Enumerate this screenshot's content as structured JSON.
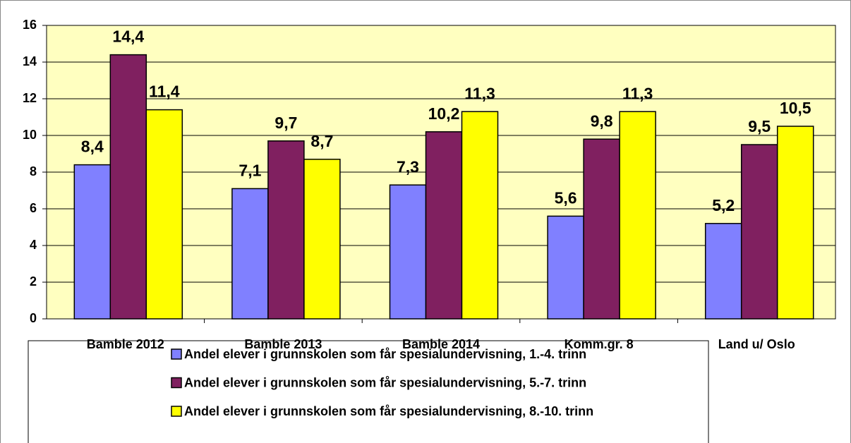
{
  "chart_data": {
    "type": "bar",
    "categories": [
      "Bamble 2012",
      "Bamble 2013",
      "Bamble 2014",
      "Komm.gr. 8",
      "Land u/ Oslo"
    ],
    "series": [
      {
        "name": "Andel elever i grunnskolen som får spesialundervisning, 1.-4. trinn",
        "color": "#8080ff",
        "values": [
          8.4,
          7.1,
          7.3,
          5.6,
          5.2
        ],
        "value_labels": [
          "8,4",
          "7,1",
          "7,3",
          "5,6",
          "5,2"
        ]
      },
      {
        "name": "Andel elever i grunnskolen som får spesialundervisning, 5.-7. trinn",
        "color": "#802060",
        "values": [
          14.4,
          9.7,
          10.2,
          9.8,
          9.5
        ],
        "value_labels": [
          "14,4",
          "9,7",
          "10,2",
          "9,8",
          "9,5"
        ]
      },
      {
        "name": "Andel elever i grunnskolen som får spesialundervisning, 8.-10. trinn",
        "color": "#ffff00",
        "values": [
          11.4,
          8.7,
          11.3,
          11.3,
          10.5
        ],
        "value_labels": [
          "11,4",
          "8,7",
          "11,3",
          "11,3",
          "10,5"
        ]
      }
    ],
    "ylim": [
      0,
      16
    ],
    "yticks": [
      0,
      2,
      4,
      6,
      8,
      10,
      12,
      14,
      16
    ],
    "grid": true,
    "legend": "bottom"
  }
}
